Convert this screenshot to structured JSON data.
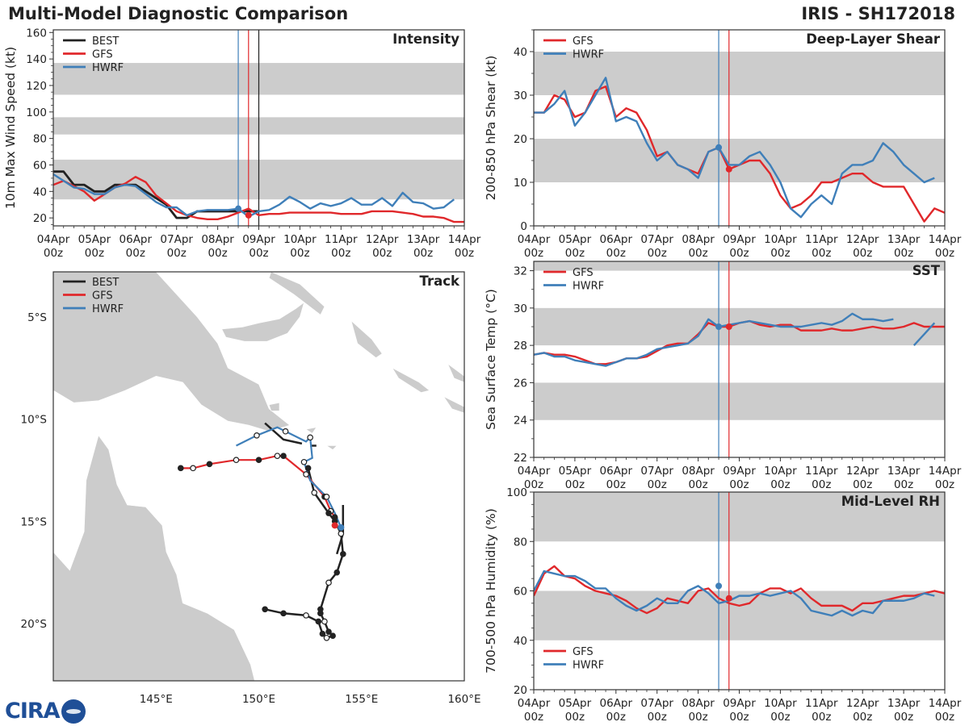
{
  "header": {
    "title": "Multi-Model Diagnostic Comparison",
    "storm": "IRIS - SH172018"
  },
  "logo": {
    "text": "CIRA",
    "alt": "CIRA globe logo"
  },
  "colors": {
    "best": "#222222",
    "gfs": "#e0282b",
    "hwrf": "#3f7fb9",
    "shade": "#cccccc",
    "land": "#cccccc"
  },
  "time_axis": {
    "labels": [
      "04Apr\n00z",
      "05Apr\n00z",
      "06Apr\n00z",
      "07Apr\n00z",
      "08Apr\n00z",
      "09Apr\n00z",
      "10Apr\n00z",
      "11Apr\n00z",
      "12Apr\n00z",
      "13Apr\n00z",
      "14Apr\n00z"
    ],
    "hwrf_init_day": 4.5,
    "gfs_init_day": 4.75,
    "best_last_day": 5.0
  },
  "chart_data": [
    {
      "id": "intensity",
      "type": "line",
      "title": "Intensity",
      "ylabel": "10m Max Wind Speed (kt)",
      "ylim": [
        14,
        162
      ],
      "yticks": [
        20,
        40,
        60,
        80,
        100,
        120,
        140,
        160
      ],
      "shaded_bands": [
        [
          34,
          64
        ],
        [
          83,
          96
        ],
        [
          113,
          137
        ]
      ],
      "legend": [
        "BEST",
        "GFS",
        "HWRF"
      ],
      "series": [
        {
          "name": "BEST",
          "x": [
            0,
            0.25,
            0.5,
            0.75,
            1,
            1.25,
            1.5,
            1.75,
            2,
            2.25,
            2.5,
            2.75,
            3,
            3.25,
            3.5,
            3.75,
            4,
            4.25,
            4.5,
            4.75,
            5
          ],
          "y": [
            55,
            55,
            45,
            45,
            40,
            40,
            45,
            45,
            45,
            40,
            35,
            30,
            20,
            20,
            25,
            25,
            25,
            25,
            25,
            25,
            25
          ]
        },
        {
          "name": "GFS",
          "x": [
            0,
            0.25,
            0.5,
            0.75,
            1,
            1.25,
            1.5,
            1.75,
            2,
            2.25,
            2.5,
            2.75,
            3,
            3.25,
            3.5,
            3.75,
            4,
            4.25,
            4.5,
            4.75,
            5,
            5.25,
            5.5,
            5.75,
            6,
            6.25,
            6.5,
            6.75,
            7,
            7.25,
            7.5,
            7.75,
            8,
            8.25,
            8.5,
            8.75,
            9,
            9.25,
            9.5,
            9.75,
            10
          ],
          "y": [
            45,
            48,
            44,
            40,
            33,
            38,
            43,
            46,
            51,
            47,
            37,
            31,
            25,
            22,
            20,
            19,
            19,
            21,
            24,
            27,
            22,
            23,
            23,
            24,
            24,
            24,
            24,
            24,
            23,
            23,
            23,
            25,
            25,
            25,
            24,
            23,
            21,
            21,
            20,
            17,
            17
          ]
        },
        {
          "name": "HWRF",
          "x": [
            0,
            0.25,
            0.5,
            0.75,
            1,
            1.25,
            1.5,
            1.75,
            2,
            2.25,
            2.5,
            2.75,
            3,
            3.25,
            3.5,
            3.75,
            4,
            4.25,
            4.5,
            4.75,
            5,
            5.25,
            5.5,
            5.75,
            6,
            6.25,
            6.5,
            6.75,
            7,
            7.25,
            7.5,
            7.75,
            8,
            8.25,
            8.5,
            8.75,
            9,
            9.25,
            9.5,
            9.75,
            10
          ],
          "y": [
            53,
            48,
            43,
            42,
            38,
            38,
            43,
            45,
            44,
            38,
            32,
            28,
            28,
            22,
            25,
            26,
            26,
            26,
            27,
            21,
            25,
            26,
            30,
            36,
            32,
            27,
            31,
            29,
            31,
            35,
            30,
            30,
            35,
            29,
            39,
            32,
            31,
            27,
            28,
            34,
            null
          ]
        }
      ],
      "markers": [
        {
          "series": "HWRF",
          "x": 4.5,
          "y": 27
        },
        {
          "series": "GFS",
          "x": 4.75,
          "y": 22
        }
      ]
    },
    {
      "id": "shear",
      "type": "line",
      "title": "Deep-Layer Shear",
      "ylabel": "200-850 hPa Shear (kt)",
      "ylim": [
        0,
        45
      ],
      "yticks": [
        0,
        10,
        20,
        30,
        40
      ],
      "shaded_bands": [
        [
          10,
          20
        ],
        [
          30,
          40
        ]
      ],
      "legend": [
        "GFS",
        "HWRF"
      ],
      "series": [
        {
          "name": "GFS",
          "x": [
            0,
            0.25,
            0.5,
            0.75,
            1,
            1.25,
            1.5,
            1.75,
            2,
            2.25,
            2.5,
            2.75,
            3,
            3.25,
            3.5,
            3.75,
            4,
            4.25,
            4.5,
            4.75,
            5,
            5.25,
            5.5,
            5.75,
            6,
            6.25,
            6.5,
            6.75,
            7,
            7.25,
            7.5,
            7.75,
            8,
            8.25,
            8.5,
            8.75,
            9,
            9.25,
            9.5,
            9.75,
            10
          ],
          "y": [
            26,
            26,
            30,
            29,
            25,
            26,
            31,
            32,
            25,
            27,
            26,
            22,
            16,
            17,
            14,
            13,
            12,
            17,
            18,
            13,
            14,
            15,
            15,
            12,
            7,
            4,
            5,
            7,
            10,
            10,
            11,
            12,
            12,
            10,
            9,
            9,
            9,
            5,
            1,
            4,
            3
          ]
        },
        {
          "name": "HWRF",
          "x": [
            0,
            0.25,
            0.5,
            0.75,
            1,
            1.25,
            1.5,
            1.75,
            2,
            2.25,
            2.5,
            2.75,
            3,
            3.25,
            3.5,
            3.75,
            4,
            4.25,
            4.5,
            4.75,
            5,
            5.25,
            5.5,
            5.75,
            6,
            6.25,
            6.5,
            6.75,
            7,
            7.25,
            7.5,
            7.75,
            8,
            8.25,
            8.5,
            8.75,
            9,
            9.25,
            9.5,
            9.75
          ],
          "y": [
            26,
            26,
            28,
            31,
            23,
            26,
            30,
            34,
            24,
            25,
            24,
            19,
            15,
            17,
            14,
            13,
            11,
            17,
            18,
            14,
            14,
            16,
            17,
            14,
            10,
            4,
            2,
            5,
            7,
            5,
            12,
            14,
            14,
            15,
            19,
            17,
            14,
            12,
            10,
            11
          ]
        }
      ],
      "markers": [
        {
          "series": "HWRF",
          "x": 4.5,
          "y": 18
        },
        {
          "series": "GFS",
          "x": 4.75,
          "y": 13
        }
      ]
    },
    {
      "id": "sst",
      "type": "line",
      "title": "SST",
      "ylabel": "Sea Surface Temp (°C)",
      "ylim": [
        22,
        32.5
      ],
      "yticks": [
        22,
        24,
        26,
        28,
        30,
        32
      ],
      "shaded_bands": [
        [
          24,
          26
        ],
        [
          28,
          30
        ],
        [
          32,
          33
        ]
      ],
      "legend": [
        "GFS",
        "HWRF"
      ],
      "series": [
        {
          "name": "GFS",
          "x": [
            0,
            0.25,
            0.5,
            0.75,
            1,
            1.25,
            1.5,
            1.75,
            2,
            2.25,
            2.5,
            2.75,
            3,
            3.25,
            3.5,
            3.75,
            4,
            4.25,
            4.5,
            4.75,
            5,
            5.25,
            5.5,
            5.75,
            6,
            6.25,
            6.5,
            6.75,
            7,
            7.25,
            7.5,
            7.75,
            8,
            8.25,
            8.5,
            8.75,
            9,
            9.25,
            9.5,
            9.75,
            10
          ],
          "y": [
            27.5,
            27.6,
            27.5,
            27.5,
            27.4,
            27.2,
            27.0,
            27.0,
            27.1,
            27.3,
            27.3,
            27.4,
            27.7,
            28.0,
            28.1,
            28.1,
            28.6,
            29.2,
            29.0,
            29.0,
            29.2,
            29.3,
            29.1,
            29.0,
            29.1,
            29.1,
            28.8,
            28.8,
            28.8,
            28.9,
            28.8,
            28.8,
            28.9,
            29.0,
            28.9,
            28.9,
            29.0,
            29.2,
            29.0,
            29.0,
            29.0
          ]
        },
        {
          "name": "HWRF",
          "x": [
            0,
            0.25,
            0.5,
            0.75,
            1,
            1.25,
            1.5,
            1.75,
            2,
            2.25,
            2.5,
            2.75,
            3,
            3.25,
            3.5,
            3.75,
            4,
            4.25,
            4.5,
            4.75,
            5,
            5.25,
            5.5,
            5.75,
            6,
            6.25,
            6.5,
            6.75,
            7,
            7.25,
            7.5,
            7.75,
            8,
            8.25,
            8.5,
            8.75,
            9,
            9.25,
            9.5,
            9.75
          ],
          "y": [
            27.5,
            27.6,
            27.4,
            27.4,
            27.2,
            27.1,
            27.0,
            26.9,
            27.1,
            27.3,
            27.3,
            27.5,
            27.8,
            27.9,
            28.0,
            28.1,
            28.5,
            29.4,
            29.0,
            29.1,
            29.2,
            29.3,
            29.2,
            29.1,
            29.0,
            29.0,
            29.0,
            29.1,
            29.2,
            29.1,
            29.3,
            29.7,
            29.4,
            29.4,
            29.3,
            29.4,
            null,
            28.0,
            28.6,
            29.2
          ]
        }
      ],
      "markers": [
        {
          "series": "HWRF",
          "x": 4.5,
          "y": 29.0
        },
        {
          "series": "GFS",
          "x": 4.75,
          "y": 29.0
        }
      ]
    },
    {
      "id": "rh",
      "type": "line",
      "title": "Mid-Level RH",
      "ylabel": "700-500 hPa Humidity (%)",
      "ylim": [
        20,
        100
      ],
      "yticks": [
        20,
        40,
        60,
        80,
        100
      ],
      "shaded_bands": [
        [
          40,
          60
        ],
        [
          80,
          100
        ]
      ],
      "legend": [
        "GFS",
        "HWRF"
      ],
      "series": [
        {
          "name": "GFS",
          "x": [
            0,
            0.25,
            0.5,
            0.75,
            1,
            1.25,
            1.5,
            1.75,
            2,
            2.25,
            2.5,
            2.75,
            3,
            3.25,
            3.5,
            3.75,
            4,
            4.25,
            4.5,
            4.75,
            5,
            5.25,
            5.5,
            5.75,
            6,
            6.25,
            6.5,
            6.75,
            7,
            7.25,
            7.5,
            7.75,
            8,
            8.25,
            8.5,
            8.75,
            9,
            9.25,
            9.5,
            9.75,
            10
          ],
          "y": [
            58,
            67,
            70,
            66,
            65,
            62,
            60,
            59,
            58,
            56,
            53,
            51,
            53,
            57,
            56,
            55,
            60,
            61,
            57,
            55,
            54,
            55,
            59,
            61,
            61,
            59,
            61,
            57,
            54,
            54,
            54,
            52,
            55,
            55,
            56,
            57,
            58,
            58,
            59,
            60,
            59
          ]
        },
        {
          "name": "HWRF",
          "x": [
            0,
            0.25,
            0.5,
            0.75,
            1,
            1.25,
            1.5,
            1.75,
            2,
            2.25,
            2.5,
            2.75,
            3,
            3.25,
            3.5,
            3.75,
            4,
            4.25,
            4.5,
            4.75,
            5,
            5.25,
            5.5,
            5.75,
            6,
            6.25,
            6.5,
            6.75,
            7,
            7.25,
            7.5,
            7.75,
            8,
            8.25,
            8.5,
            8.75,
            9,
            9.25,
            9.5,
            9.75
          ],
          "y": [
            60,
            68,
            67,
            66,
            66,
            64,
            61,
            61,
            57,
            54,
            52,
            54,
            57,
            55,
            55,
            60,
            62,
            59,
            55,
            56,
            58,
            58,
            59,
            58,
            59,
            60,
            57,
            52,
            51,
            50,
            52,
            50,
            52,
            51,
            56,
            56,
            56,
            57,
            59,
            58
          ]
        }
      ],
      "markers": [
        {
          "series": "HWRF",
          "x": 4.5,
          "y": 62
        },
        {
          "series": "GFS",
          "x": 4.75,
          "y": 57
        }
      ]
    },
    {
      "id": "track",
      "type": "scatter",
      "title": "Track",
      "xlabel": "",
      "ylabel": "",
      "xlim": [
        140,
        160
      ],
      "ylim": [
        -22.8,
        -2.8
      ],
      "xticks": [
        145,
        150,
        155,
        160
      ],
      "xtick_labels": [
        "145°E",
        "150°E",
        "155°E",
        "160°E"
      ],
      "yticks": [
        -5,
        -10,
        -15,
        -20
      ],
      "ytick_labels": [
        "5°S",
        "10°S",
        "15°S",
        "20°S"
      ],
      "legend": [
        "BEST",
        "GFS",
        "HWRF"
      ],
      "series": [
        {
          "name": "BEST",
          "lon": [
            150.3,
            151.2,
            152.1,
            152.5,
            152.8,
            152.4,
            152.7,
            153.4,
            153.7,
            154.0,
            154.1,
            153.8,
            153.4,
            153.0,
            153.0,
            153.2,
            153.4,
            153.6,
            153.3,
            153.1,
            152.9,
            152.3,
            151.2,
            150.3
          ],
          "lat": [
            -10.2,
            -11.0,
            -11.2,
            -11.3,
            -11.3,
            -12.4,
            -13.6,
            -14.6,
            -15.0,
            -15.6,
            -16.6,
            -17.5,
            -18.0,
            -19.3,
            -19.5,
            -19.9,
            -20.4,
            -20.6,
            -20.7,
            -20.5,
            -19.9,
            -19.6,
            -19.5,
            -19.3
          ],
          "lat_note": "upper segment"
        },
        {
          "name": "GFS",
          "lon": [
            146.2,
            146.8,
            147.6,
            148.9,
            150.0,
            150.9,
            151.2,
            152.3,
            153.2,
            153.5,
            153.7,
            153.7
          ],
          "lat": [
            -12.4,
            -12.4,
            -12.2,
            -12.0,
            -12.0,
            -11.8,
            -11.8,
            -12.7,
            -13.8,
            -14.5,
            -14.8,
            -15.2
          ]
        },
        {
          "name": "HWRF",
          "lon": [
            148.9,
            149.9,
            150.9,
            151.3,
            152.3,
            152.5,
            152.6,
            152.2,
            152.5,
            153.3,
            153.7,
            154.0
          ],
          "lat": [
            -11.3,
            -10.8,
            -10.4,
            -10.6,
            -11.1,
            -10.9,
            -11.9,
            -12.1,
            -13.0,
            -13.8,
            -14.6,
            -15.3
          ]
        }
      ]
    }
  ]
}
